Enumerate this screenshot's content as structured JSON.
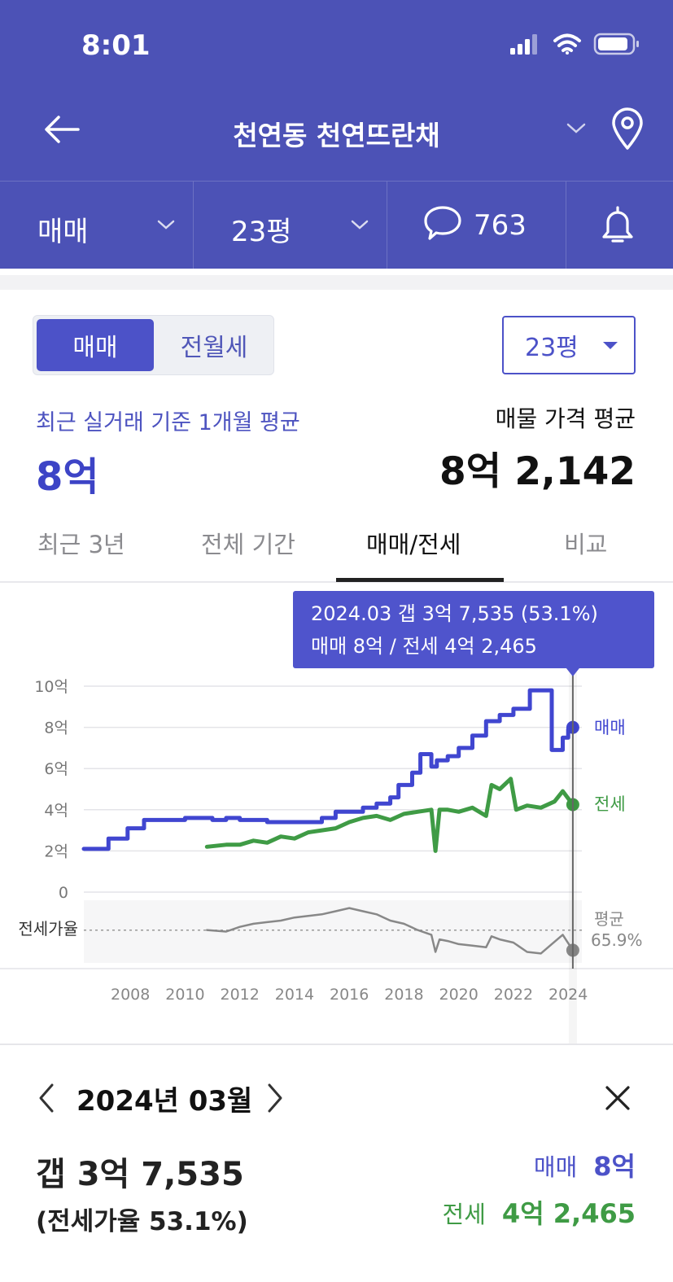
{
  "status": {
    "time": "8:01"
  },
  "header": {
    "title": "천연동 천연뜨란채",
    "filters": [
      {
        "label": "매매"
      },
      {
        "label": "23평"
      },
      {
        "label": "763"
      }
    ]
  },
  "toggle": {
    "active": "매매",
    "inactive": "전월세"
  },
  "size_select": {
    "value": "23평"
  },
  "summary": {
    "recent_label": "최근 실거래 기준 1개월 평균",
    "recent_value": "8억",
    "listing_label": "매물 가격 평균",
    "listing_value": "8억 2,142"
  },
  "tabs": [
    "최근 3년",
    "전체 기간",
    "매매/전세",
    "비교"
  ],
  "tooltip": {
    "line1": "2024.03  갭 3억 7,535 (53.1%)",
    "line2": "매매 8억 / 전세 4억 2,465"
  },
  "colors": {
    "sale": "#4046d0",
    "jeonse": "#3f9b45",
    "ratio": "#888888",
    "header": "#4c52b6"
  },
  "chart_data": {
    "type": "line",
    "ylim": [
      0,
      10
    ],
    "y_tick_labels": [
      "10억",
      "8억",
      "6억",
      "4억",
      "2억",
      "0"
    ],
    "y_ticks": [
      10,
      8,
      6,
      4,
      2,
      0
    ],
    "x_tick_labels": [
      "2008",
      "2010",
      "2012",
      "2014",
      "2016",
      "2018",
      "2020",
      "2022",
      "2024"
    ],
    "x_ticks": [
      2008,
      2010,
      2012,
      2014,
      2016,
      2018,
      2020,
      2022,
      2024
    ],
    "xlim": [
      2006.3,
      2024.5
    ],
    "cursor_x": 2024.17,
    "series": [
      {
        "name": "매매",
        "unit": "억",
        "x": [
          2006.3,
          2007.0,
          2007.2,
          2007.7,
          2007.9,
          2008.4,
          2008.5,
          2009.0,
          2010.0,
          2011.0,
          2011.5,
          2012.0,
          2013.0,
          2014.0,
          2015.0,
          2015.5,
          2016.5,
          2017.0,
          2017.5,
          2017.8,
          2018.3,
          2018.6,
          2018.8,
          2019.0,
          2019.2,
          2019.6,
          2020.0,
          2020.5,
          2021.0,
          2021.5,
          2022.0,
          2022.4,
          2022.6,
          2023.1,
          2023.4,
          2023.8,
          2024.0,
          2024.17
        ],
        "y": [
          2.1,
          2.1,
          2.6,
          2.6,
          3.1,
          3.1,
          3.5,
          3.5,
          3.6,
          3.5,
          3.6,
          3.5,
          3.4,
          3.4,
          3.6,
          3.9,
          4.1,
          4.3,
          4.6,
          5.2,
          5.8,
          6.7,
          6.7,
          6.1,
          6.4,
          6.6,
          7.0,
          7.6,
          8.3,
          8.6,
          8.9,
          8.9,
          9.8,
          9.8,
          6.9,
          7.5,
          7.9,
          8.0
        ]
      },
      {
        "name": "전세",
        "unit": "억",
        "x": [
          2010.8,
          2011.5,
          2012.0,
          2012.5,
          2013.0,
          2013.5,
          2014.0,
          2014.5,
          2015.0,
          2015.5,
          2016.0,
          2016.5,
          2017.0,
          2017.5,
          2018.0,
          2018.5,
          2019.0,
          2019.15,
          2019.3,
          2019.6,
          2020.0,
          2020.5,
          2021.0,
          2021.2,
          2021.5,
          2021.9,
          2022.1,
          2022.5,
          2023.0,
          2023.5,
          2023.8,
          2024.17
        ],
        "y": [
          2.2,
          2.3,
          2.3,
          2.5,
          2.4,
          2.7,
          2.6,
          2.9,
          3.0,
          3.1,
          3.4,
          3.6,
          3.7,
          3.5,
          3.8,
          3.9,
          4.0,
          2.0,
          4.0,
          4.0,
          3.9,
          4.1,
          3.7,
          5.2,
          5.0,
          5.5,
          4.0,
          4.2,
          4.1,
          4.4,
          4.9,
          4.25
        ]
      },
      {
        "name": "전세가율",
        "unit": "%",
        "x": [
          2010.8,
          2011.5,
          2012.0,
          2012.5,
          2013.0,
          2013.5,
          2014.0,
          2014.5,
          2015.0,
          2015.5,
          2016.0,
          2016.5,
          2017.0,
          2017.5,
          2018.0,
          2018.5,
          2019.0,
          2019.15,
          2019.3,
          2019.6,
          2020.0,
          2020.5,
          2021.0,
          2021.2,
          2021.5,
          2022.0,
          2022.5,
          2023.0,
          2023.4,
          2023.8,
          2024.17
        ],
        "y": [
          66,
          65,
          68,
          70,
          71,
          72,
          74,
          75,
          76,
          78,
          80,
          78,
          76,
          72,
          70,
          66,
          63,
          52,
          60,
          59,
          57,
          56,
          55,
          62,
          60,
          58,
          52,
          51,
          57,
          63,
          53.1
        ]
      }
    ],
    "series_labels": {
      "sale": "매매",
      "jeonse": "전세"
    },
    "ratio_label": "전세가율",
    "ratio_avg_label": "평균",
    "ratio_avg_value": "65.9%"
  },
  "detail": {
    "date": "2024년 03월",
    "gap": "갭 3억 7,535",
    "ratio": "(전세가율 53.1%)",
    "sale_label": "매매",
    "sale_value": "8억",
    "jeonse_label": "전세",
    "jeonse_value": "4억 2,465"
  }
}
